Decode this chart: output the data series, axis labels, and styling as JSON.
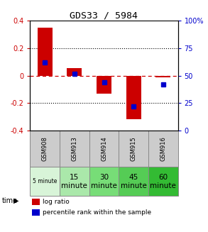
{
  "title": "GDS33 / 5984",
  "samples": [
    "GSM908",
    "GSM913",
    "GSM914",
    "GSM915",
    "GSM916"
  ],
  "log_ratio": [
    0.35,
    0.055,
    -0.13,
    -0.32,
    -0.01
  ],
  "percentile": [
    62,
    52,
    44,
    22,
    42
  ],
  "bar_width": 0.5,
  "ylim_left": [
    -0.4,
    0.4
  ],
  "ylim_right": [
    0,
    100
  ],
  "yticks_left": [
    -0.4,
    -0.2,
    0.0,
    0.2,
    0.4
  ],
  "yticks_left_labels": [
    "-0.4",
    "-0.2",
    "0",
    "0.2",
    "0.4"
  ],
  "yticks_right": [
    0,
    25,
    50,
    75,
    100
  ],
  "yticks_right_labels": [
    "0",
    "25",
    "50",
    "75",
    "100%"
  ],
  "left_color": "#cc0000",
  "right_color": "#0000cc",
  "hline_color": "#cc0000",
  "dot_grid_color": "#000000",
  "bg_color": "#ffffff",
  "gsm_row_color": "#cccccc",
  "gsm_row_border": "#888888",
  "time_col_colors": [
    "#d8f4d8",
    "#aae8aa",
    "#77dd77",
    "#55cc55",
    "#33bb33"
  ],
  "legend_sq_red": "#cc0000",
  "legend_sq_blue": "#0000cc",
  "legend_log": "log ratio",
  "legend_pct": "percentile rank within the sample",
  "time_label": "time"
}
